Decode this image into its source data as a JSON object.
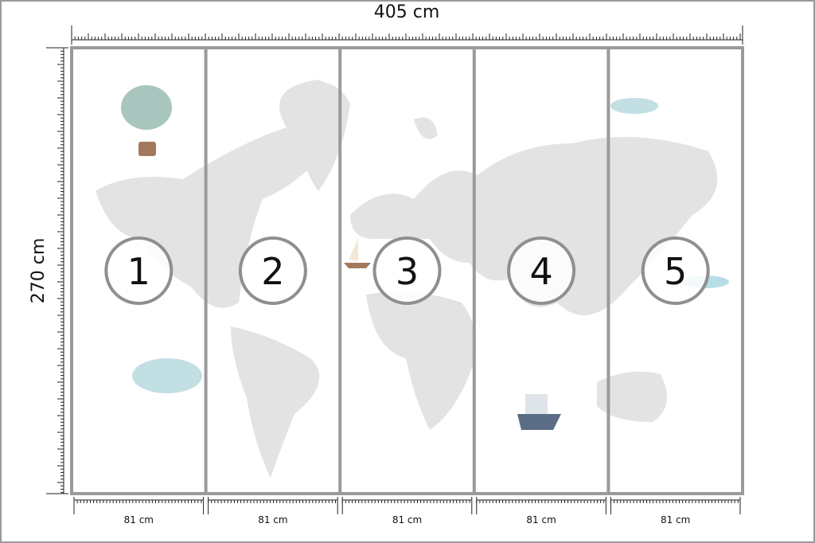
{
  "dimensions": {
    "width": "405 cm",
    "height": "270 cm"
  },
  "panels": [
    {
      "number": "1",
      "width": "81 cm"
    },
    {
      "number": "2",
      "width": "81 cm"
    },
    {
      "number": "3",
      "width": "81 cm"
    },
    {
      "number": "4",
      "width": "81 cm"
    },
    {
      "number": "5",
      "width": "81 cm"
    }
  ]
}
